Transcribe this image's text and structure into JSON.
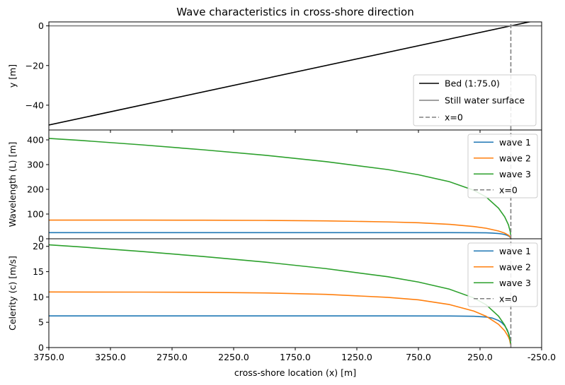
{
  "figure": {
    "title": "Wave characteristics in cross-shore direction",
    "xlabel": "cross-shore location (x) [m]"
  },
  "chart_data": [
    {
      "type": "line",
      "title": "Wave characteristics in cross-shore direction",
      "xlabel": "cross-shore location (x) [m]",
      "ylabel": "y [m]",
      "xlim": [
        3750,
        -250
      ],
      "ylim": [
        -52.5,
        2.0
      ],
      "xticks": [
        "3750.0",
        "3250.0",
        "2750.0",
        "2250.0",
        "1750.0",
        "1250.0",
        "750.0",
        "250.0",
        "-250.0"
      ],
      "yticks": [
        {
          "v": 0,
          "label": "0"
        },
        {
          "v": -20,
          "label": "−20"
        },
        {
          "v": -40,
          "label": "−40"
        }
      ],
      "legend": "lower-right",
      "grid": false,
      "series": [
        {
          "name": "Bed (1:75.0)",
          "color": "#000000",
          "dash": false,
          "x": [
            3750,
            -250
          ],
          "y": [
            -50,
            3.33
          ]
        },
        {
          "name": "Still water surface",
          "color": "#808080",
          "dash": false,
          "x": [
            3750,
            -250
          ],
          "y": [
            0,
            0
          ]
        },
        {
          "name": "x=0",
          "color": "#808080",
          "dash": true,
          "x": [
            0,
            0
          ],
          "y": [
            -52.5,
            2.0
          ]
        }
      ]
    },
    {
      "type": "line",
      "ylabel": "Wavelength (L) [m]",
      "xlim": [
        3750,
        -250
      ],
      "ylim": [
        0,
        440
      ],
      "yticks": [
        {
          "v": 0,
          "label": "0"
        },
        {
          "v": 100,
          "label": "100"
        },
        {
          "v": 200,
          "label": "200"
        },
        {
          "v": 300,
          "label": "300"
        },
        {
          "v": 400,
          "label": "400"
        }
      ],
      "legend": "upper-right",
      "grid": false,
      "series": [
        {
          "name": "wave 1",
          "color": "#1f77b4",
          "dash": false,
          "x": [
            3750,
            3000,
            2000,
            1000,
            500,
            300,
            200,
            150,
            100,
            75,
            50,
            30,
            15,
            5,
            1
          ],
          "y": [
            24.8,
            24.8,
            24.8,
            24.8,
            24.8,
            24.6,
            24.0,
            23.1,
            21.2,
            19.6,
            17.1,
            14.0,
            10.3,
            6.0,
            2.7
          ]
        },
        {
          "name": "wave 2",
          "color": "#ff7f0e",
          "dash": false,
          "x": [
            3750,
            3000,
            2500,
            2000,
            1500,
            1000,
            750,
            500,
            300,
            200,
            100,
            50,
            20,
            10,
            1
          ],
          "y": [
            75.6,
            75.5,
            75.2,
            74.3,
            72.3,
            68.2,
            64.8,
            58.5,
            49.5,
            42.5,
            31.5,
            22.8,
            14.6,
            10.4,
            3.3
          ]
        },
        {
          "name": "wave 3",
          "color": "#2ca02c",
          "dash": false,
          "x": [
            3750,
            3500,
            3000,
            2500,
            2000,
            1500,
            1000,
            750,
            500,
            300,
            200,
            100,
            50,
            20,
            5,
            1
          ],
          "y": [
            406,
            398,
            380,
            360,
            338,
            312,
            280,
            259,
            231,
            196,
            169,
            124,
            89,
            57,
            29,
            13
          ]
        },
        {
          "name": "x=0",
          "color": "#808080",
          "dash": true,
          "x": [
            0,
            0
          ],
          "y": [
            0,
            440
          ]
        }
      ]
    },
    {
      "type": "line",
      "ylabel": "Celerity (c) [m/s]",
      "xlim": [
        3750,
        -250
      ],
      "ylim": [
        0,
        21.5
      ],
      "yticks": [
        {
          "v": 0,
          "label": "0"
        },
        {
          "v": 5,
          "label": "5"
        },
        {
          "v": 10,
          "label": "10"
        },
        {
          "v": 15,
          "label": "15"
        },
        {
          "v": 20,
          "label": "20"
        }
      ],
      "xticks": [
        "3750.0",
        "3250.0",
        "2750.0",
        "2250.0",
        "1750.0",
        "1250.0",
        "750.0",
        "250.0",
        "-250.0"
      ],
      "legend": "upper-right",
      "grid": false,
      "series": [
        {
          "name": "wave 1",
          "color": "#1f77b4",
          "dash": false,
          "x": [
            3750,
            3000,
            2000,
            1000,
            500,
            300,
            200,
            150,
            100,
            75,
            50,
            30,
            15,
            5,
            1
          ],
          "y": [
            6.25,
            6.25,
            6.25,
            6.25,
            6.24,
            6.18,
            6.03,
            5.82,
            5.35,
            4.95,
            4.32,
            3.55,
            2.58,
            1.52,
            0.69
          ]
        },
        {
          "name": "wave 2",
          "color": "#ff7f0e",
          "dash": false,
          "x": [
            3750,
            3000,
            2500,
            2000,
            1500,
            1000,
            750,
            500,
            300,
            200,
            100,
            50,
            20,
            10,
            1
          ],
          "y": [
            10.98,
            10.96,
            10.92,
            10.8,
            10.52,
            9.92,
            9.43,
            8.51,
            7.21,
            6.18,
            4.59,
            3.32,
            2.13,
            1.51,
            0.48
          ]
        },
        {
          "name": "wave 3",
          "color": "#2ca02c",
          "dash": false,
          "x": [
            3750,
            3500,
            3000,
            2500,
            2000,
            1500,
            1000,
            750,
            500,
            300,
            200,
            100,
            50,
            20,
            5,
            1
          ],
          "y": [
            20.3,
            19.9,
            19.0,
            18.0,
            16.9,
            15.6,
            14.0,
            12.95,
            11.55,
            9.8,
            8.45,
            6.2,
            4.45,
            2.85,
            1.45,
            0.65
          ]
        },
        {
          "name": "x=0",
          "color": "#808080",
          "dash": true,
          "x": [
            0,
            0
          ],
          "y": [
            0,
            21.5
          ]
        }
      ]
    }
  ]
}
